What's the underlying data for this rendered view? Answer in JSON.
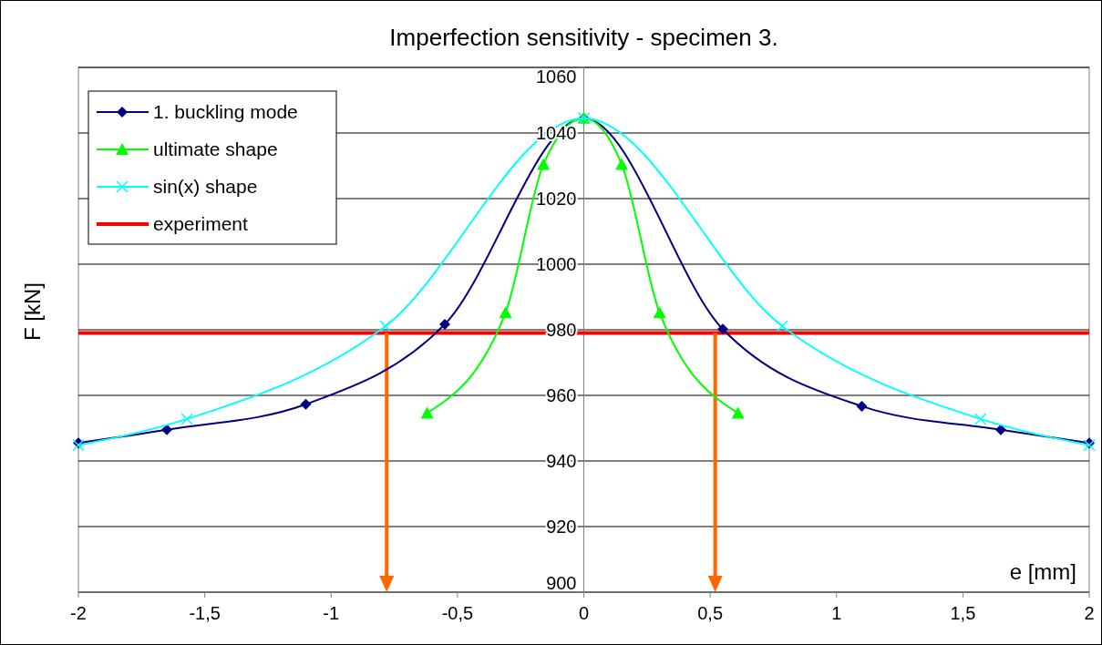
{
  "chart_data": {
    "type": "line",
    "title": "Imperfection sensitivity - specimen 3.",
    "xlabel": "e [mm]",
    "ylabel": "F [kN]",
    "xlim": [
      -2,
      2
    ],
    "xticks": [
      -2,
      {
        "value": -1.5,
        "label": "-1,5"
      },
      -1,
      {
        "value": -0.5,
        "label": "-0,5"
      },
      0,
      {
        "value": 0.5,
        "label": "0,5"
      },
      1,
      {
        "value": 1.5,
        "label": "1,5"
      },
      2
    ],
    "ylim": [
      900,
      1060
    ],
    "yticks": [
      900,
      920,
      940,
      960,
      980,
      1000,
      1020,
      1040,
      1060
    ],
    "grid": "y",
    "legend": "top left",
    "series": [
      {
        "name": "1. buckling mode",
        "color": "#000080",
        "marker": "diamond",
        "x": [
          -2,
          -1.65,
          -1.1,
          -0.55,
          0,
          0.55,
          1.1,
          1.65,
          2
        ],
        "values": [
          945.5,
          949.5,
          957.3,
          981.7,
          1044.5,
          980.2,
          956.7,
          949.5,
          945.5
        ]
      },
      {
        "name": "ultimate shape",
        "color": "#00ff00",
        "marker": "triangle",
        "x": [
          -0.62,
          -0.31,
          -0.16,
          0,
          0.15,
          0.3,
          0.61
        ],
        "values": [
          954.6,
          985.2,
          1030.4,
          1044.5,
          1030.4,
          985.2,
          954.6
        ]
      },
      {
        "name": "sin(x) shape",
        "color": "#00ffff",
        "marker": "cross",
        "x": [
          -2,
          -1.57,
          -0.785,
          0,
          0.785,
          1.57,
          2
        ],
        "values": [
          944.8,
          952.8,
          981.1,
          1044.5,
          981.1,
          952.8,
          944.8
        ]
      }
    ],
    "ref_lines": [
      {
        "axis": "y",
        "value": 979,
        "label": "experiment",
        "color": "#ff0000"
      },
      {
        "axis": "x",
        "value": -0.78,
        "color": "#ff6600"
      },
      {
        "axis": "x",
        "value": 0.52,
        "color": "#ff6600"
      }
    ]
  }
}
